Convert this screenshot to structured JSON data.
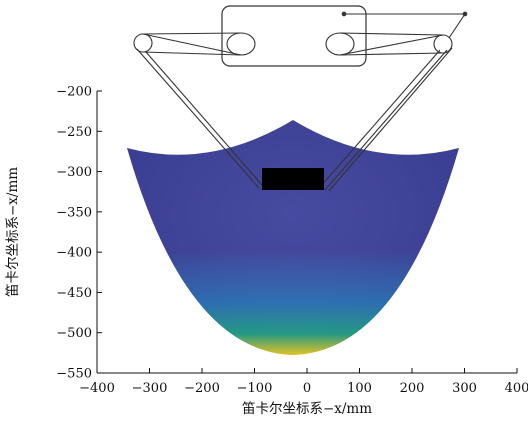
{
  "figure": {
    "xlabel": "笛卡尔坐标系−x/mm",
    "ylabel": "笛卡尔坐标系−x/mm",
    "x_ticks": [
      "−400",
      "−300",
      "−200",
      "−100",
      "0",
      "100",
      "200",
      "300",
      "400"
    ],
    "y_ticks": [
      "−200",
      "−250",
      "−300",
      "−350",
      "−400",
      "−450",
      "−500",
      "−550"
    ],
    "colors": {
      "surface_top": "#3b3f9a",
      "surface_mid": "#2a6fb8",
      "surface_teal": "#22a08a",
      "surface_bottom": "#f2d024",
      "mechanism": "#333333",
      "end_effector": "#000000"
    }
  }
}
